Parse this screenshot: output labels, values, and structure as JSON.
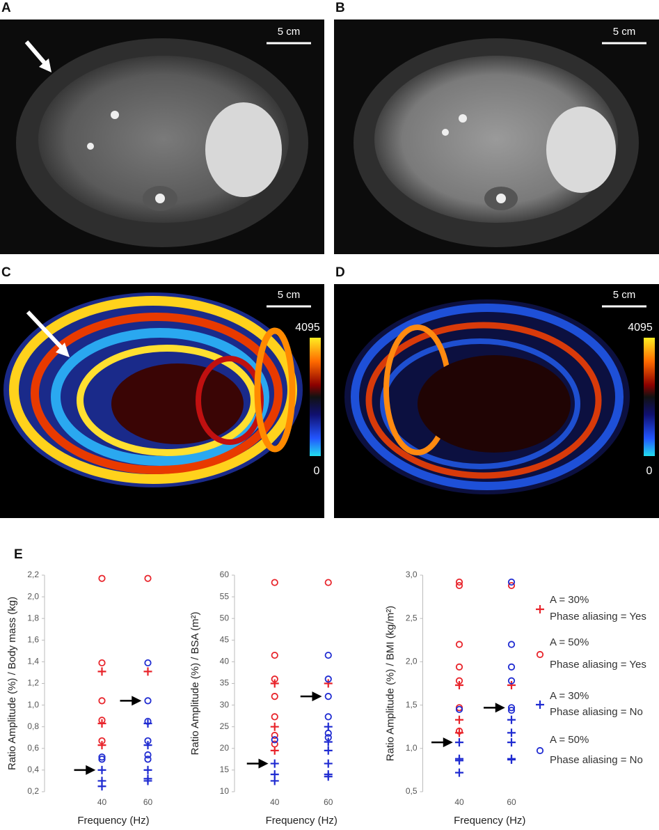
{
  "panels": [
    {
      "label": "A",
      "scale_bar": "5 cm"
    },
    {
      "label": "B",
      "scale_bar": "5 cm"
    },
    {
      "label": "C",
      "scale_bar": "5 cm",
      "colorbar": {
        "max": 4095,
        "min": 0
      }
    },
    {
      "label": "D",
      "scale_bar": "5 cm",
      "colorbar": {
        "max": 4095,
        "min": 0
      }
    }
  ],
  "panel_e_label": "E",
  "legend": [
    {
      "lines": [
        "A = 30%",
        "Phase aliasing = Yes"
      ],
      "color": "#e8242b",
      "marker": "plus"
    },
    {
      "lines": [
        "A = 50%",
        "Phase aliasing = Yes"
      ],
      "color": "#e8242b",
      "marker": "circle"
    },
    {
      "lines": [
        "A = 30%",
        "Phase aliasing = No"
      ],
      "color": "#1f2bd1",
      "marker": "plus"
    },
    {
      "lines": [
        "A = 50%",
        "Phase aliasing = No"
      ],
      "color": "#1f2bd1",
      "marker": "circle"
    }
  ],
  "chart_data": [
    {
      "type": "scatter",
      "y_label": "Ratio Amplitude (%) / Body mass (kg)",
      "x_label": "Frequency (Hz)",
      "xlim": [
        15,
        75
      ],
      "xticks": [
        40,
        60
      ],
      "ylim": [
        0.2,
        2.2
      ],
      "yticks": [
        {
          "value": 0.2,
          "label": "0,2"
        },
        {
          "value": 0.4,
          "label": "0,4"
        },
        {
          "value": 0.6,
          "label": "0,6"
        },
        {
          "value": 0.8,
          "label": "0,8"
        },
        {
          "value": 1.0,
          "label": "1,0"
        },
        {
          "value": 1.2,
          "label": "1,2"
        },
        {
          "value": 1.4,
          "label": "1,4"
        },
        {
          "value": 1.6,
          "label": "1,6"
        },
        {
          "value": 1.8,
          "label": "1,8"
        },
        {
          "value": 2.0,
          "label": "2,0"
        },
        {
          "value": 2.2,
          "label": "2,2"
        }
      ],
      "series": [
        {
          "marker": "plus",
          "color": "#e8242b",
          "x": [
            40,
            40,
            40,
            60
          ],
          "values": [
            1.31,
            0.83,
            0.63,
            1.31
          ]
        },
        {
          "marker": "circle",
          "color": "#e8242b",
          "x": [
            40,
            40,
            40,
            40,
            40,
            60
          ],
          "values": [
            2.17,
            1.39,
            1.04,
            0.86,
            0.67,
            2.17
          ]
        },
        {
          "marker": "plus",
          "color": "#1f2bd1",
          "x": [
            40,
            40,
            40,
            60,
            60,
            60,
            60,
            60
          ],
          "values": [
            0.4,
            0.3,
            0.25,
            0.83,
            0.63,
            0.4,
            0.32,
            0.3
          ]
        },
        {
          "marker": "circle",
          "color": "#1f2bd1",
          "x": [
            40,
            40,
            60,
            60,
            60,
            60,
            60,
            60
          ],
          "values": [
            0.52,
            0.5,
            1.39,
            1.04,
            0.85,
            0.67,
            0.54,
            0.5
          ]
        }
      ],
      "arrows": [
        {
          "x": 40,
          "y": 0.4
        },
        {
          "x": 60,
          "y": 1.04
        }
      ]
    },
    {
      "type": "scatter",
      "y_label": "Ratio Amplitude (%) / BSA (m²)",
      "x_label": "Frequency (Hz)",
      "xlim": [
        25,
        75
      ],
      "xticks": [
        40,
        60
      ],
      "ylim": [
        10,
        60
      ],
      "yticks": [
        10,
        15,
        20,
        25,
        30,
        35,
        40,
        45,
        50,
        55,
        60
      ],
      "series": [
        {
          "marker": "plus",
          "color": "#e8242b",
          "x": [
            40,
            40,
            40,
            60
          ],
          "values": [
            35,
            25,
            19.5,
            35
          ]
        },
        {
          "marker": "circle",
          "color": "#e8242b",
          "x": [
            40,
            40,
            40,
            40,
            40,
            40,
            40,
            60
          ],
          "values": [
            58.3,
            41.5,
            36,
            32,
            27.3,
            23,
            21,
            58.3
          ]
        },
        {
          "marker": "plus",
          "color": "#1f2bd1",
          "x": [
            40,
            40,
            40,
            60,
            60,
            60,
            60,
            60,
            60
          ],
          "values": [
            16.5,
            14,
            12.5,
            25,
            21.5,
            19.5,
            16.5,
            14,
            13.5
          ]
        },
        {
          "marker": "circle",
          "color": "#1f2bd1",
          "x": [
            40,
            60,
            60,
            60,
            60,
            60,
            60
          ],
          "values": [
            22,
            41.5,
            36,
            32,
            27.3,
            23.5,
            22.5
          ]
        }
      ],
      "arrows": [
        {
          "x": 40,
          "y": 16.5
        },
        {
          "x": 60,
          "y": 32
        }
      ]
    },
    {
      "type": "scatter",
      "y_label": "Ratio Amplitude (%) / BMI (kg/m²)",
      "x_label": "Frequency (Hz)",
      "xlim": [
        26,
        72
      ],
      "xticks": [
        40,
        60
      ],
      "ylim": [
        0.5,
        3.0
      ],
      "yticks": [
        {
          "value": 0.5,
          "label": "0,5"
        },
        {
          "value": 1.0,
          "label": "1,0"
        },
        {
          "value": 1.5,
          "label": "1,5"
        },
        {
          "value": 2.0,
          "label": "2,0"
        },
        {
          "value": 2.5,
          "label": "2,5"
        },
        {
          "value": 3.0,
          "label": "3,0"
        }
      ],
      "series": [
        {
          "marker": "plus",
          "color": "#e8242b",
          "x": [
            40,
            40,
            40,
            60
          ],
          "values": [
            1.73,
            1.33,
            1.18,
            1.73
          ]
        },
        {
          "marker": "circle",
          "color": "#e8242b",
          "x": [
            40,
            40,
            40,
            40,
            40,
            40,
            40,
            60
          ],
          "values": [
            2.92,
            2.88,
            2.2,
            1.94,
            1.78,
            1.47,
            1.2,
            2.88
          ]
        },
        {
          "marker": "plus",
          "color": "#1f2bd1",
          "x": [
            40,
            40,
            40,
            40,
            60,
            60,
            60,
            60,
            60
          ],
          "values": [
            1.07,
            0.88,
            0.86,
            0.72,
            1.33,
            1.18,
            1.07,
            0.88,
            0.87
          ]
        },
        {
          "marker": "circle",
          "color": "#1f2bd1",
          "x": [
            40,
            60,
            60,
            60,
            60,
            60,
            60
          ],
          "values": [
            1.45,
            2.92,
            2.2,
            1.94,
            1.78,
            1.47,
            1.44
          ]
        }
      ],
      "arrows": [
        {
          "x": 40,
          "y": 1.07
        },
        {
          "x": 60,
          "y": 1.47
        }
      ]
    }
  ]
}
